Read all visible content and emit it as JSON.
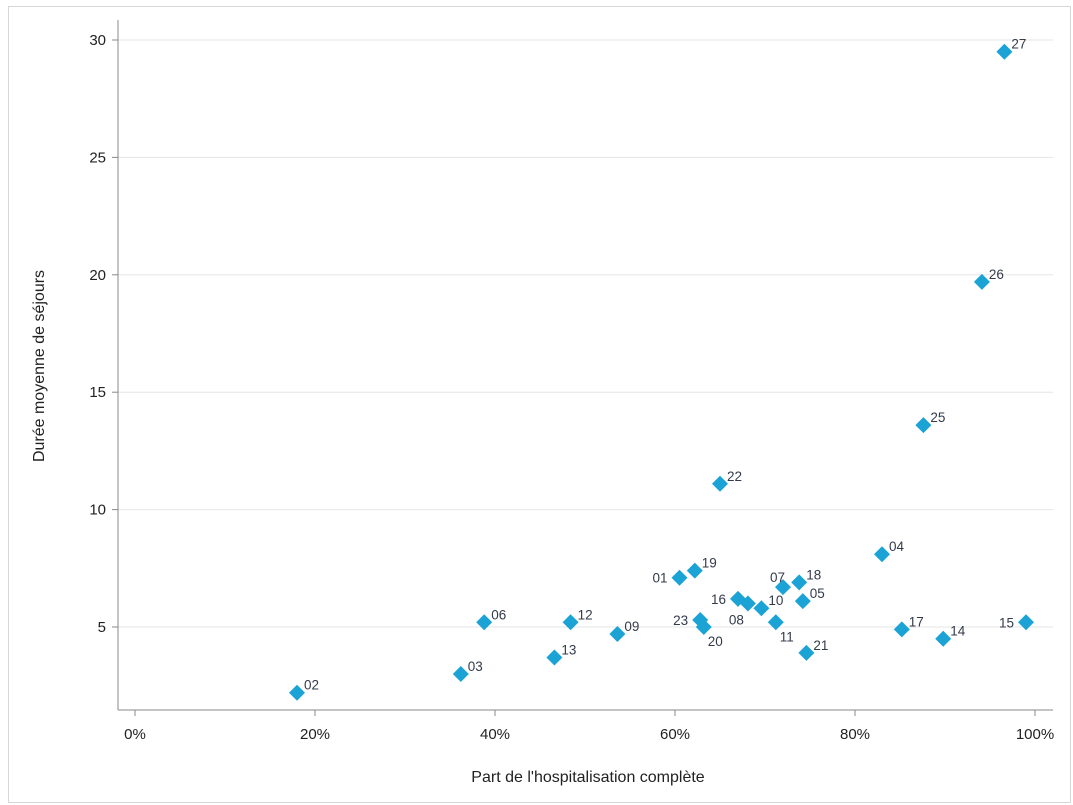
{
  "chart_data": {
    "type": "scatter",
    "title": "",
    "xlabel": "Part de l'hospitalisation complète",
    "ylabel": "Durée moyenne de séjours",
    "xlim": [
      -1.5,
      101.5
    ],
    "ylim": [
      1.4,
      31.2
    ],
    "x_ticks": [
      0,
      20,
      40,
      60,
      80,
      100
    ],
    "x_tick_labels": [
      "0%",
      "20%",
      "40%",
      "60%",
      "80%",
      "100%"
    ],
    "y_ticks": [
      5,
      10,
      15,
      20,
      25,
      30
    ],
    "y_tick_labels": [
      "5",
      "10",
      "15",
      "20",
      "25",
      "30"
    ],
    "grid": "horizontal",
    "marker": "diamond",
    "marker_color": "#1ba3d6",
    "points": [
      {
        "label": "01",
        "x": 60.5,
        "y": 7.1,
        "label_pos": "left"
      },
      {
        "label": "02",
        "x": 18.0,
        "y": 2.2,
        "label_pos": "right"
      },
      {
        "label": "03",
        "x": 36.2,
        "y": 3.0,
        "label_pos": "right"
      },
      {
        "label": "04",
        "x": 83.0,
        "y": 8.1,
        "label_pos": "right"
      },
      {
        "label": "05",
        "x": 74.2,
        "y": 6.1,
        "label_pos": "right"
      },
      {
        "label": "06",
        "x": 38.8,
        "y": 5.2,
        "label_pos": "right"
      },
      {
        "label": "07",
        "x": 72.0,
        "y": 6.7,
        "label_pos": "above-left"
      },
      {
        "label": "08",
        "x": 68.1,
        "y": 6.0,
        "label_pos": "below-left"
      },
      {
        "label": "09",
        "x": 53.6,
        "y": 4.7,
        "label_pos": "right"
      },
      {
        "label": "10",
        "x": 69.6,
        "y": 5.8,
        "label_pos": "right"
      },
      {
        "label": "11",
        "x": 71.2,
        "y": 5.2,
        "label_pos": "below-right"
      },
      {
        "label": "12",
        "x": 48.4,
        "y": 5.2,
        "label_pos": "right"
      },
      {
        "label": "13",
        "x": 46.6,
        "y": 3.7,
        "label_pos": "right"
      },
      {
        "label": "14",
        "x": 89.8,
        "y": 4.5,
        "label_pos": "right"
      },
      {
        "label": "15",
        "x": 99.0,
        "y": 5.2,
        "label_pos": "left"
      },
      {
        "label": "16",
        "x": 67.0,
        "y": 6.2,
        "label_pos": "left"
      },
      {
        "label": "17",
        "x": 85.2,
        "y": 4.9,
        "label_pos": "right"
      },
      {
        "label": "18",
        "x": 73.8,
        "y": 6.9,
        "label_pos": "right"
      },
      {
        "label": "19",
        "x": 62.2,
        "y": 7.4,
        "label_pos": "right"
      },
      {
        "label": "20",
        "x": 63.2,
        "y": 5.0,
        "label_pos": "below-right"
      },
      {
        "label": "21",
        "x": 74.6,
        "y": 3.9,
        "label_pos": "right"
      },
      {
        "label": "22",
        "x": 65.0,
        "y": 11.1,
        "label_pos": "right"
      },
      {
        "label": "23",
        "x": 62.8,
        "y": 5.3,
        "label_pos": "left"
      },
      {
        "label": "25",
        "x": 87.6,
        "y": 13.6,
        "label_pos": "right"
      },
      {
        "label": "26",
        "x": 94.1,
        "y": 19.7,
        "label_pos": "right"
      },
      {
        "label": "27",
        "x": 96.6,
        "y": 29.5,
        "label_pos": "right"
      }
    ]
  }
}
